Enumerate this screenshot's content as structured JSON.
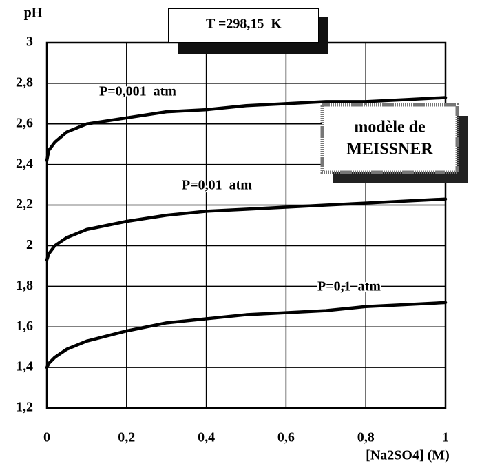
{
  "chart_data": {
    "type": "line",
    "title": "T =298,15  K",
    "annotation": [
      "modèle de",
      "MEISSNER"
    ],
    "ylabel": "pH",
    "xlabel": "[Na2SO4]  (M)",
    "x": [
      0,
      0.005,
      0.02,
      0.05,
      0.1,
      0.2,
      0.3,
      0.4,
      0.5,
      0.6,
      0.7,
      0.8,
      0.9,
      1
    ],
    "series": [
      {
        "name": "P=0,001  atm",
        "color": "#000000",
        "values": [
          2.42,
          2.47,
          2.51,
          2.56,
          2.6,
          2.63,
          2.66,
          2.67,
          2.69,
          2.7,
          2.71,
          2.71,
          2.72,
          2.73
        ]
      },
      {
        "name": "P=0,01  atm",
        "color": "#000000",
        "values": [
          1.93,
          1.96,
          2.0,
          2.04,
          2.08,
          2.12,
          2.15,
          2.17,
          2.18,
          2.19,
          2.2,
          2.21,
          2.22,
          2.23
        ]
      },
      {
        "name": "P=0,1  atm",
        "color": "#000000",
        "values": [
          1.4,
          1.42,
          1.45,
          1.49,
          1.53,
          1.58,
          1.62,
          1.64,
          1.66,
          1.67,
          1.68,
          1.7,
          1.71,
          1.72
        ]
      }
    ],
    "xlim": [
      0,
      1
    ],
    "xticks": [
      0,
      {
        "value": 0.2,
        "label": "0,2"
      },
      {
        "value": 0.4,
        "label": "0,4"
      },
      {
        "value": 0.6,
        "label": "0,6"
      },
      {
        "value": 0.8,
        "label": "0,8"
      },
      1
    ],
    "ylim": [
      1.2,
      3
    ],
    "yticks": [
      {
        "value": 1.2,
        "label": "1,2"
      },
      {
        "value": 1.4,
        "label": "1,4"
      },
      {
        "value": 1.6,
        "label": "1,6"
      },
      {
        "value": 1.8,
        "label": "1,8"
      },
      2,
      {
        "value": 2.2,
        "label": "2,2"
      },
      {
        "value": 2.4,
        "label": "2,4"
      },
      {
        "value": 2.6,
        "label": "2,6"
      },
      {
        "value": 2.8,
        "label": "2,8"
      },
      3
    ],
    "grid": true
  }
}
